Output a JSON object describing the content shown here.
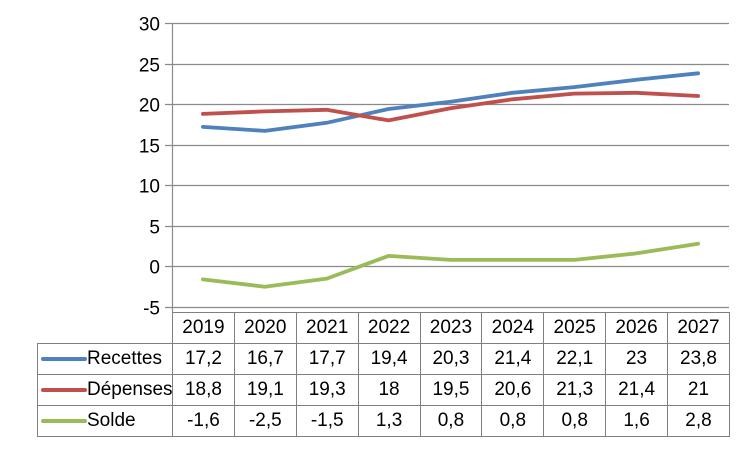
{
  "chart_data": {
    "type": "line",
    "title": "",
    "xlabel": "",
    "ylabel": "",
    "categories": [
      "2019",
      "2020",
      "2021",
      "2022",
      "2023",
      "2024",
      "2025",
      "2026",
      "2027"
    ],
    "series": [
      {
        "name": "Recettes",
        "color": "#4F81BD",
        "values": [
          17.2,
          16.7,
          17.7,
          19.4,
          20.3,
          21.4,
          22.1,
          23,
          23.8
        ],
        "display_values": [
          "17,2",
          "16,7",
          "17,7",
          "19,4",
          "20,3",
          "21,4",
          "22,1",
          "23",
          "23,8"
        ]
      },
      {
        "name": "Dépenses",
        "color": "#C0504D",
        "values": [
          18.8,
          19.1,
          19.3,
          18,
          19.5,
          20.6,
          21.3,
          21.4,
          21
        ],
        "display_values": [
          "18,8",
          "19,1",
          "19,3",
          "18",
          "19,5",
          "20,6",
          "21,3",
          "21,4",
          "21"
        ]
      },
      {
        "name": "Solde",
        "color": "#9BBB59",
        "values": [
          -1.6,
          -2.5,
          -1.5,
          1.3,
          0.8,
          0.8,
          0.8,
          1.6,
          2.8
        ],
        "display_values": [
          "-1,6",
          "-2,5",
          "-1,5",
          "1,3",
          "0,8",
          "0,8",
          "0,8",
          "1,6",
          "2,8"
        ]
      }
    ],
    "ylim": [
      -5,
      30
    ],
    "y_ticks": [
      30,
      25,
      20,
      15,
      10,
      5,
      0,
      -5
    ],
    "grid": true,
    "legend_position": "data-table-left"
  },
  "colors": {
    "background": "#FFFFFF",
    "gridline": "#8A8A8A",
    "axis_line": "#8A8A8A",
    "table_border": "#7F7F7F",
    "text": "#000000"
  }
}
